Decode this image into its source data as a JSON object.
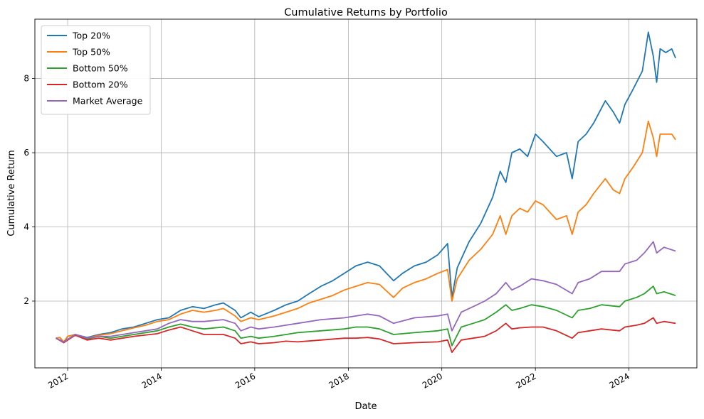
{
  "chart_data": {
    "type": "line",
    "title": "Cumulative Returns by Portfolio",
    "xlabel": "Date",
    "ylabel": "Cumulative Return",
    "xlim": [
      "2011-04-20",
      "2025-06-15"
    ],
    "ylim": [
      0.2,
      9.6
    ],
    "xticks": [
      "2012",
      "2014",
      "2016",
      "2018",
      "2020",
      "2022",
      "2024"
    ],
    "yticks": [
      2,
      4,
      6,
      8
    ],
    "grid": true,
    "legend_position": "top-left",
    "series": [
      {
        "name": "Top 20%",
        "color": "#1f77b4",
        "x": [
          "2011-10-01",
          "2011-11-01",
          "2011-12-01",
          "2012-01-01",
          "2012-03-01",
          "2012-06-01",
          "2012-09-01",
          "2012-12-01",
          "2013-03-01",
          "2013-06-01",
          "2013-09-01",
          "2013-12-01",
          "2014-03-01",
          "2014-06-01",
          "2014-09-01",
          "2014-12-01",
          "2015-03-01",
          "2015-05-01",
          "2015-08-01",
          "2015-09-15",
          "2015-12-01",
          "2016-02-01",
          "2016-06-01",
          "2016-09-01",
          "2016-12-01",
          "2017-03-01",
          "2017-06-01",
          "2017-09-01",
          "2017-12-01",
          "2018-03-01",
          "2018-06-01",
          "2018-09-01",
          "2018-12-20",
          "2019-03-01",
          "2019-06-01",
          "2019-09-01",
          "2019-12-01",
          "2020-02-15",
          "2020-03-20",
          "2020-05-01",
          "2020-08-01",
          "2020-11-01",
          "2021-02-01",
          "2021-04-01",
          "2021-05-15",
          "2021-07-01",
          "2021-09-01",
          "2021-11-01",
          "2022-01-01",
          "2022-03-01",
          "2022-06-15",
          "2022-09-01",
          "2022-10-15",
          "2022-12-01",
          "2023-02-01",
          "2023-04-01",
          "2023-07-01",
          "2023-09-01",
          "2023-10-20",
          "2023-12-01",
          "2024-02-01",
          "2024-04-15",
          "2024-06-01",
          "2024-07-10",
          "2024-08-05",
          "2024-09-01",
          "2024-10-15",
          "2024-12-01",
          "2024-12-31"
        ],
        "values": [
          1.0,
          1.02,
          0.88,
          1.05,
          1.1,
          1.02,
          1.1,
          1.15,
          1.25,
          1.3,
          1.4,
          1.5,
          1.55,
          1.75,
          1.85,
          1.8,
          1.9,
          1.95,
          1.75,
          1.55,
          1.7,
          1.58,
          1.75,
          1.9,
          2.0,
          2.2,
          2.4,
          2.55,
          2.75,
          2.95,
          3.05,
          2.95,
          2.55,
          2.75,
          2.95,
          3.05,
          3.25,
          3.55,
          2.1,
          2.9,
          3.6,
          4.1,
          4.8,
          5.5,
          5.2,
          6.0,
          6.1,
          5.9,
          6.5,
          6.3,
          5.9,
          6.0,
          5.3,
          6.3,
          6.5,
          6.8,
          7.4,
          7.1,
          6.8,
          7.3,
          7.7,
          8.2,
          9.25,
          8.6,
          7.9,
          8.8,
          8.7,
          8.8,
          8.55
        ]
      },
      {
        "name": "Top 50%",
        "color": "#ff7f0e",
        "x": [
          "2011-10-01",
          "2011-11-01",
          "2011-12-01",
          "2012-01-01",
          "2012-03-01",
          "2012-06-01",
          "2012-09-01",
          "2012-12-01",
          "2013-03-01",
          "2013-06-01",
          "2013-09-01",
          "2013-12-01",
          "2014-03-01",
          "2014-06-01",
          "2014-09-01",
          "2014-12-01",
          "2015-03-01",
          "2015-05-01",
          "2015-08-01",
          "2015-09-15",
          "2015-12-01",
          "2016-02-01",
          "2016-06-01",
          "2016-09-01",
          "2016-12-01",
          "2017-03-01",
          "2017-06-01",
          "2017-09-01",
          "2017-12-01",
          "2018-03-01",
          "2018-06-01",
          "2018-09-01",
          "2018-12-20",
          "2019-03-01",
          "2019-06-01",
          "2019-09-01",
          "2019-12-01",
          "2020-02-15",
          "2020-03-20",
          "2020-05-01",
          "2020-08-01",
          "2020-11-01",
          "2021-02-01",
          "2021-04-01",
          "2021-05-15",
          "2021-07-01",
          "2021-09-01",
          "2021-11-01",
          "2022-01-01",
          "2022-03-01",
          "2022-06-15",
          "2022-09-01",
          "2022-10-15",
          "2022-12-01",
          "2023-02-01",
          "2023-04-01",
          "2023-07-01",
          "2023-09-01",
          "2023-10-20",
          "2023-12-01",
          "2024-02-01",
          "2024-04-15",
          "2024-06-01",
          "2024-07-10",
          "2024-08-05",
          "2024-09-01",
          "2024-10-15",
          "2024-12-01",
          "2024-12-31"
        ],
        "values": [
          1.0,
          1.02,
          0.9,
          1.05,
          1.1,
          1.0,
          1.08,
          1.12,
          1.2,
          1.28,
          1.35,
          1.45,
          1.5,
          1.65,
          1.75,
          1.7,
          1.75,
          1.8,
          1.6,
          1.45,
          1.55,
          1.5,
          1.6,
          1.7,
          1.8,
          1.95,
          2.05,
          2.15,
          2.3,
          2.4,
          2.5,
          2.45,
          2.1,
          2.35,
          2.5,
          2.6,
          2.75,
          2.85,
          2.0,
          2.6,
          3.1,
          3.4,
          3.8,
          4.3,
          3.8,
          4.3,
          4.5,
          4.4,
          4.7,
          4.6,
          4.2,
          4.3,
          3.8,
          4.4,
          4.6,
          4.9,
          5.3,
          5.0,
          4.9,
          5.3,
          5.6,
          6.0,
          6.85,
          6.4,
          5.9,
          6.5,
          6.5,
          6.5,
          6.35
        ]
      },
      {
        "name": "Bottom 50%",
        "color": "#2ca02c",
        "x": [
          "2011-10-01",
          "2011-12-01",
          "2012-03-01",
          "2012-06-01",
          "2012-09-01",
          "2012-12-01",
          "2013-06-01",
          "2013-12-01",
          "2014-03-01",
          "2014-06-01",
          "2014-09-01",
          "2014-12-01",
          "2015-05-01",
          "2015-08-01",
          "2015-09-15",
          "2015-12-01",
          "2016-02-01",
          "2016-06-01",
          "2016-09-01",
          "2016-12-01",
          "2017-06-01",
          "2017-12-01",
          "2018-03-01",
          "2018-06-01",
          "2018-09-01",
          "2018-12-20",
          "2019-06-01",
          "2019-12-01",
          "2020-02-15",
          "2020-03-20",
          "2020-06-01",
          "2020-09-01",
          "2020-12-01",
          "2021-03-01",
          "2021-05-15",
          "2021-07-01",
          "2021-09-01",
          "2021-12-01",
          "2022-03-01",
          "2022-06-15",
          "2022-10-15",
          "2022-12-01",
          "2023-03-01",
          "2023-06-01",
          "2023-10-20",
          "2023-12-01",
          "2024-03-01",
          "2024-05-01",
          "2024-07-10",
          "2024-08-05",
          "2024-10-01",
          "2024-12-31"
        ],
        "values": [
          1.0,
          0.9,
          1.1,
          0.98,
          1.05,
          1.0,
          1.1,
          1.2,
          1.3,
          1.38,
          1.3,
          1.25,
          1.3,
          1.2,
          1.0,
          1.05,
          1.0,
          1.05,
          1.1,
          1.15,
          1.2,
          1.25,
          1.3,
          1.3,
          1.25,
          1.1,
          1.15,
          1.2,
          1.25,
          0.8,
          1.3,
          1.4,
          1.5,
          1.7,
          1.9,
          1.75,
          1.8,
          1.9,
          1.85,
          1.75,
          1.55,
          1.75,
          1.8,
          1.9,
          1.85,
          2.0,
          2.1,
          2.2,
          2.4,
          2.2,
          2.25,
          2.15
        ]
      },
      {
        "name": "Bottom 20%",
        "color": "#d62728",
        "x": [
          "2011-10-01",
          "2011-12-01",
          "2012-03-01",
          "2012-06-01",
          "2012-09-01",
          "2012-12-01",
          "2013-06-01",
          "2013-12-01",
          "2014-03-01",
          "2014-06-01",
          "2014-09-01",
          "2014-12-01",
          "2015-05-01",
          "2015-08-01",
          "2015-09-15",
          "2015-12-01",
          "2016-02-01",
          "2016-06-01",
          "2016-09-01",
          "2016-12-01",
          "2017-06-01",
          "2017-12-01",
          "2018-03-01",
          "2018-06-01",
          "2018-09-01",
          "2018-12-20",
          "2019-06-01",
          "2019-12-01",
          "2020-02-15",
          "2020-03-20",
          "2020-06-01",
          "2020-09-01",
          "2020-12-01",
          "2021-03-01",
          "2021-05-15",
          "2021-07-01",
          "2021-09-01",
          "2021-12-01",
          "2022-03-01",
          "2022-06-15",
          "2022-10-15",
          "2022-12-01",
          "2023-03-01",
          "2023-06-01",
          "2023-10-20",
          "2023-12-01",
          "2024-03-01",
          "2024-05-01",
          "2024-07-10",
          "2024-08-05",
          "2024-10-01",
          "2024-12-31"
        ],
        "values": [
          1.0,
          0.88,
          1.08,
          0.95,
          1.0,
          0.95,
          1.05,
          1.12,
          1.22,
          1.3,
          1.2,
          1.1,
          1.1,
          1.0,
          0.85,
          0.9,
          0.85,
          0.88,
          0.92,
          0.9,
          0.95,
          1.0,
          1.0,
          1.02,
          0.98,
          0.85,
          0.88,
          0.9,
          0.95,
          0.62,
          0.95,
          1.0,
          1.05,
          1.2,
          1.4,
          1.25,
          1.28,
          1.3,
          1.3,
          1.2,
          1.0,
          1.15,
          1.2,
          1.25,
          1.2,
          1.3,
          1.35,
          1.4,
          1.55,
          1.4,
          1.45,
          1.4
        ]
      },
      {
        "name": "Market Average",
        "color": "#9467bd",
        "x": [
          "2011-10-01",
          "2011-12-01",
          "2012-03-01",
          "2012-06-01",
          "2012-09-01",
          "2012-12-01",
          "2013-06-01",
          "2013-12-01",
          "2014-03-01",
          "2014-06-01",
          "2014-09-01",
          "2014-12-01",
          "2015-05-01",
          "2015-08-01",
          "2015-09-15",
          "2015-12-01",
          "2016-02-01",
          "2016-06-01",
          "2016-09-01",
          "2016-12-01",
          "2017-06-01",
          "2017-12-01",
          "2018-03-01",
          "2018-06-01",
          "2018-09-01",
          "2018-12-20",
          "2019-06-01",
          "2019-12-01",
          "2020-02-15",
          "2020-03-20",
          "2020-06-01",
          "2020-09-01",
          "2020-12-01",
          "2021-03-01",
          "2021-05-15",
          "2021-07-01",
          "2021-09-01",
          "2021-12-01",
          "2022-03-01",
          "2022-06-15",
          "2022-10-15",
          "2022-12-01",
          "2023-03-01",
          "2023-06-01",
          "2023-10-20",
          "2023-12-01",
          "2024-03-01",
          "2024-05-01",
          "2024-07-10",
          "2024-08-05",
          "2024-10-01",
          "2024-12-31"
        ],
        "values": [
          1.0,
          0.9,
          1.1,
          1.0,
          1.05,
          1.05,
          1.15,
          1.25,
          1.4,
          1.5,
          1.45,
          1.45,
          1.5,
          1.4,
          1.2,
          1.3,
          1.25,
          1.3,
          1.35,
          1.4,
          1.5,
          1.55,
          1.6,
          1.65,
          1.6,
          1.4,
          1.55,
          1.6,
          1.65,
          1.2,
          1.7,
          1.85,
          2.0,
          2.2,
          2.5,
          2.3,
          2.4,
          2.6,
          2.55,
          2.45,
          2.2,
          2.5,
          2.6,
          2.8,
          2.8,
          3.0,
          3.1,
          3.3,
          3.6,
          3.3,
          3.45,
          3.35
        ]
      }
    ]
  }
}
